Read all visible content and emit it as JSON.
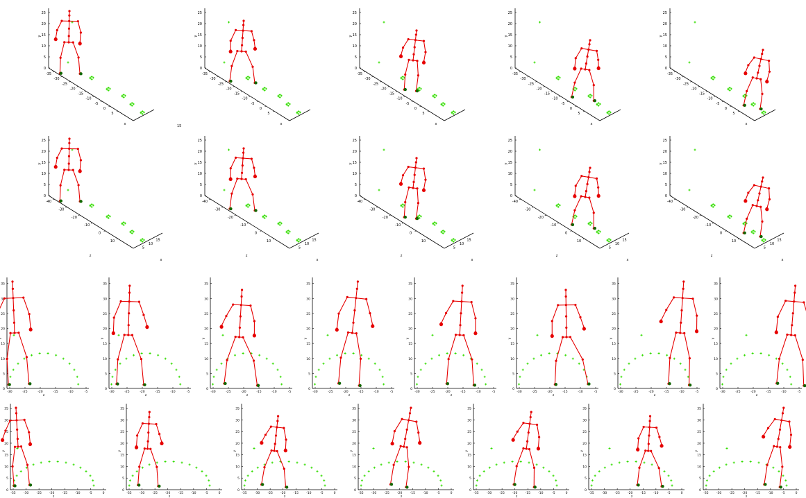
{
  "figure": {
    "stray_label": "15"
  },
  "colors": {
    "skeleton": "#e60000",
    "markers": "#33dd00",
    "marker_dark": "#116600",
    "axis": "#000000"
  },
  "chart_data": [
    {
      "type": "scatter",
      "projection": "3d",
      "row": 1,
      "panels": 5,
      "ylabel": "y",
      "xlabel": "x",
      "zlabel": "z",
      "y_ticks": [
        "0",
        "5",
        "10",
        "15",
        "20",
        "25"
      ],
      "z_ticks": [
        "-35",
        "-30",
        "-25",
        "-20",
        "-15",
        "-10",
        "-5",
        "0",
        "5"
      ],
      "x_ticks": [],
      "ylim": [
        0,
        27
      ],
      "zlim": [
        -38,
        7
      ]
    },
    {
      "type": "scatter",
      "projection": "3d",
      "row": 2,
      "panels": 5,
      "ylabel": "y",
      "xlabel": "x",
      "zlabel": "z",
      "y_ticks": [
        "0",
        "5",
        "10",
        "15",
        "20",
        "25"
      ],
      "z_ticks": [
        "-40",
        "-30",
        "-20",
        "-10",
        "0",
        "10"
      ],
      "x_ticks": [
        "5",
        "10",
        "15"
      ],
      "ylim": [
        0,
        27
      ],
      "zlim": [
        -40,
        14
      ]
    },
    {
      "type": "scatter",
      "projection": "2d",
      "row": 3,
      "panels": 8,
      "xlabel": "z",
      "ylabel": "y",
      "x_ticks": [
        "-30",
        "-25",
        "-20",
        "-15",
        "-10",
        "-5"
      ],
      "y_ticks": [
        "0",
        "5",
        "10",
        "15",
        "20",
        "25",
        "30",
        "35"
      ],
      "xlim": [
        -31,
        -4
      ],
      "ylim": [
        0,
        37
      ]
    },
    {
      "type": "scatter",
      "projection": "2d",
      "row": 4,
      "panels": 7,
      "xlabel": "z",
      "ylabel": "y",
      "x_ticks": [
        "-35",
        "-30",
        "-25",
        "-20",
        "-15",
        "-10",
        "-5",
        "0"
      ],
      "y_ticks": [
        "0",
        "5",
        "10",
        "15",
        "20",
        "25",
        "30",
        "35"
      ],
      "xlim": [
        -36,
        1
      ],
      "ylim": [
        0,
        37
      ]
    }
  ]
}
